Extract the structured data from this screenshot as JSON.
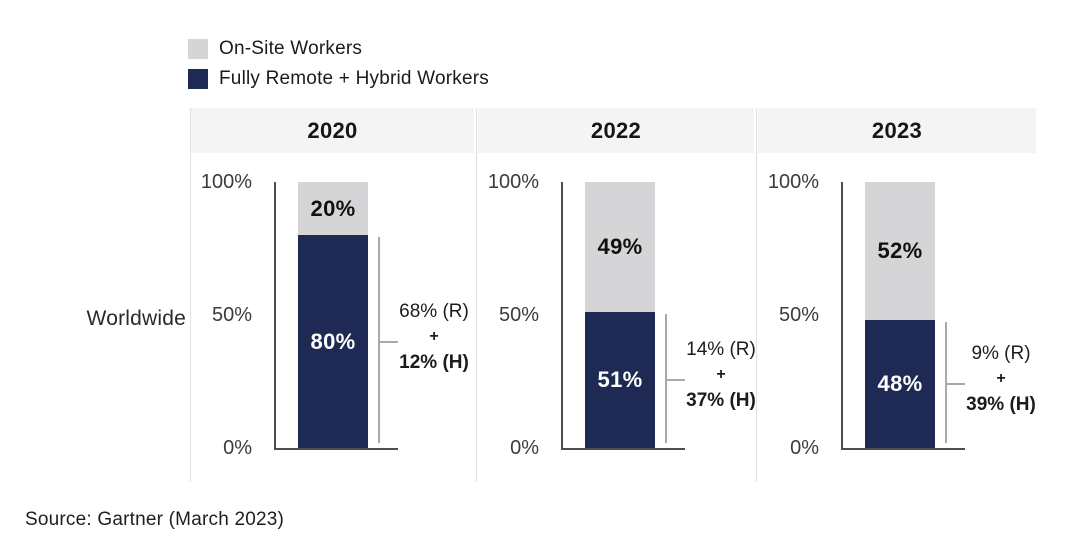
{
  "legend": {
    "items": [
      {
        "name": "onsite",
        "label": "On-Site Workers",
        "color": "#d5d5d7"
      },
      {
        "name": "remote_hybrid",
        "label": "Fully Remote + Hybrid Workers",
        "color": "#1e2a54"
      }
    ]
  },
  "row_label": "Worldwide",
  "source": "Source: Gartner (March 2023)",
  "chart_data": {
    "type": "bar",
    "stacked": true,
    "title": "",
    "categories": [
      "2020",
      "2022",
      "2023"
    ],
    "axis_ticks": [
      "100%",
      "50%",
      "0%"
    ],
    "ylim": [
      0,
      100
    ],
    "ylabel": "",
    "xlabel": "",
    "grid": false,
    "legend_position": "top-left",
    "series": [
      {
        "name": "On-Site Workers",
        "color": "#d5d5d7",
        "values": [
          20,
          49,
          52
        ]
      },
      {
        "name": "Fully Remote + Hybrid Workers",
        "color": "#1e2a54",
        "values": [
          80,
          51,
          48
        ]
      }
    ],
    "bar_labels": {
      "onsite": [
        "20%",
        "49%",
        "52%"
      ],
      "remote": [
        "80%",
        "51%",
        "48%"
      ]
    },
    "annotations": [
      {
        "remote": "68% (R)",
        "plus": "+",
        "hybrid": "12% (H)"
      },
      {
        "remote": "14% (R)",
        "plus": "+",
        "hybrid": "37% (H)"
      },
      {
        "remote": "9% (R)",
        "plus": "+",
        "hybrid": "39% (H)"
      }
    ]
  }
}
